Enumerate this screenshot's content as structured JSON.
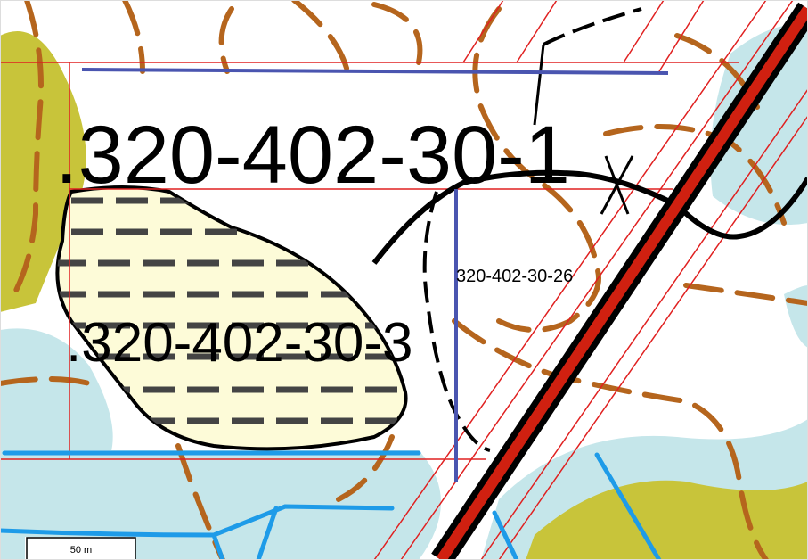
{
  "labels": [
    ".320-402-30-1",
    ".320-402-30-3",
    "320-402-30-26"
  ],
  "scale_bar": {
    "label": "50 m"
  }
}
